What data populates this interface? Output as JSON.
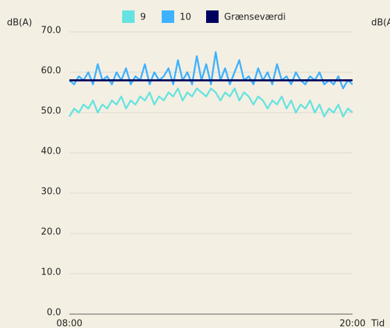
{
  "chart_data": {
    "type": "line",
    "y_label": "dB(A)",
    "x_label": "Tid",
    "clipped_label": "dB(A",
    "categories": [
      "08:00",
      null,
      null,
      null,
      null,
      null,
      null,
      null,
      null,
      null,
      null,
      null,
      null,
      null,
      null,
      null,
      null,
      null,
      null,
      null,
      null,
      null,
      null,
      null,
      null,
      null,
      null,
      null,
      null,
      null,
      null,
      null,
      null,
      null,
      null,
      null,
      null,
      null,
      null,
      null,
      null,
      null,
      null,
      null,
      null,
      null,
      null,
      null,
      null,
      null,
      null,
      null,
      null,
      null,
      null,
      null,
      null,
      null,
      null,
      null,
      "20:00"
    ],
    "series": [
      {
        "name": "9",
        "color": "#66e3e0",
        "values": [
          49,
          51,
          50,
          52,
          51,
          53,
          50,
          52,
          51,
          53,
          52,
          54,
          51,
          53,
          52,
          54,
          53,
          55,
          52,
          54,
          53,
          55,
          54,
          56,
          53,
          55,
          54,
          56,
          55,
          54,
          56,
          55,
          53,
          55,
          54,
          56,
          53,
          55,
          54,
          52,
          54,
          53,
          51,
          53,
          52,
          54,
          51,
          53,
          50,
          52,
          51,
          53,
          50,
          52,
          49,
          51,
          50,
          52,
          49,
          51,
          50
        ]
      },
      {
        "name": "10",
        "color": "#3db2ff",
        "values": [
          58,
          57,
          59,
          58,
          60,
          57,
          62,
          58,
          59,
          57,
          60,
          58,
          61,
          57,
          59,
          58,
          62,
          57,
          60,
          58,
          59,
          61,
          57,
          63,
          58,
          60,
          57,
          64,
          58,
          62,
          57,
          65,
          58,
          61,
          57,
          60,
          63,
          58,
          59,
          57,
          61,
          58,
          60,
          57,
          62,
          58,
          59,
          57,
          60,
          58,
          57,
          59,
          58,
          60,
          57,
          58,
          57,
          59,
          56,
          58,
          57
        ]
      },
      {
        "name": "Grænseværdi",
        "color": "#00005e",
        "values": [
          58,
          58,
          58,
          58,
          58,
          58,
          58,
          58,
          58,
          58,
          58,
          58,
          58,
          58,
          58,
          58,
          58,
          58,
          58,
          58,
          58,
          58,
          58,
          58,
          58,
          58,
          58,
          58,
          58,
          58,
          58,
          58,
          58,
          58,
          58,
          58,
          58,
          58,
          58,
          58,
          58,
          58,
          58,
          58,
          58,
          58,
          58,
          58,
          58,
          58,
          58,
          58,
          58,
          58,
          58,
          58,
          58,
          58,
          58,
          58,
          58
        ]
      }
    ],
    "ylim": [
      0,
      70
    ],
    "yticks": [
      {
        "value": 0,
        "label": "0.0"
      },
      {
        "value": 10,
        "label": "10.0"
      },
      {
        "value": 20,
        "label": "20.0"
      },
      {
        "value": 30,
        "label": "30.0"
      },
      {
        "value": 40,
        "label": "40.0"
      },
      {
        "value": 50,
        "label": "50.0"
      },
      {
        "value": 60,
        "label": "60.0"
      },
      {
        "value": 70,
        "label": "70.0"
      }
    ],
    "grid": true
  }
}
